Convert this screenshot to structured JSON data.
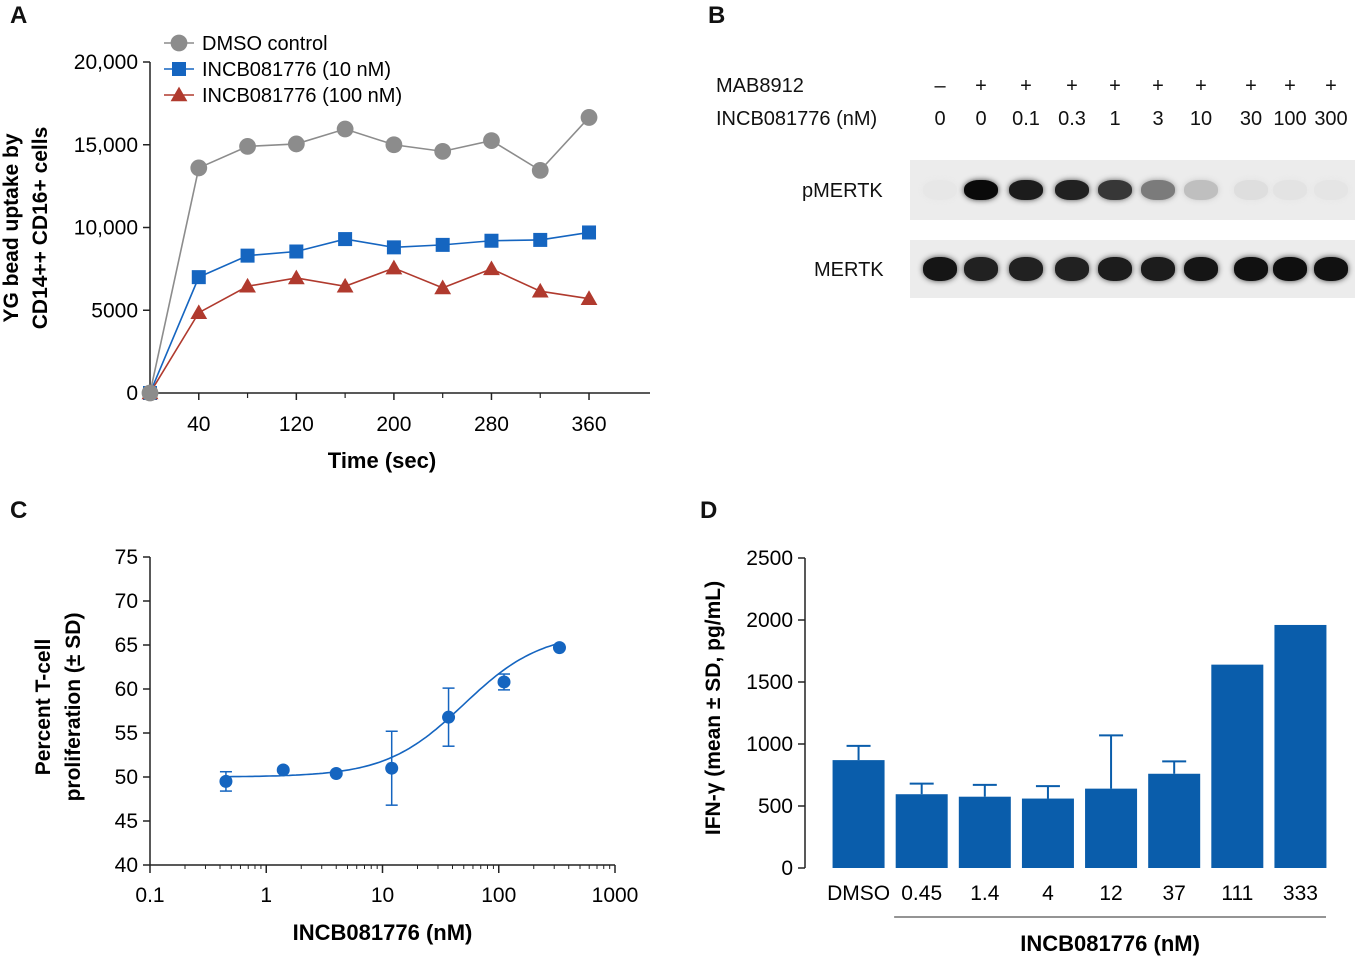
{
  "panels": {
    "A": {
      "letter": "A",
      "chart_data": {
        "type": "line",
        "title": "",
        "xlabel": "Time (sec)",
        "ylabel_line1": "YG bead uptake by",
        "ylabel_line2": "CD14++ CD16+ cells",
        "xlim": [
          0,
          410
        ],
        "ylim": [
          0,
          20000
        ],
        "xticks": [
          40,
          120,
          200,
          280,
          360
        ],
        "yticks": [
          0,
          5000,
          10000,
          15000,
          20000
        ],
        "ytick_labels": [
          "0",
          "5000",
          "10,000",
          "15,000",
          "20,000"
        ],
        "x": [
          0,
          40,
          80,
          120,
          160,
          200,
          240,
          280,
          320,
          360
        ],
        "series": [
          {
            "name": "DMSO control",
            "color": "#8c8c8c",
            "marker": "circle",
            "values": [
              0,
              13600,
              14900,
              15050,
              15950,
              15000,
              14600,
              15250,
              13450,
              16650
            ]
          },
          {
            "name": "INCB081776 (10 nM)",
            "color": "#1565c0",
            "marker": "square",
            "values": [
              0,
              7000,
              8300,
              8550,
              9300,
              8800,
              8950,
              9200,
              9250,
              9700
            ]
          },
          {
            "name": "INCB081776 (100 nM)",
            "color": "#b03a2e",
            "marker": "triangle",
            "values": [
              0,
              4850,
              6450,
              6950,
              6450,
              7550,
              6350,
              7500,
              6150,
              5700
            ]
          }
        ],
        "legend": "top-left"
      }
    },
    "B": {
      "letter": "B",
      "row1_label": "MAB8912",
      "row2_label": "INCB081776 (nM)",
      "mab_signs": [
        "–",
        "+",
        "+",
        "+",
        "+",
        "+",
        "+",
        "+",
        "+",
        "+"
      ],
      "concentrations": [
        "0",
        "0",
        "0.1",
        "0.3",
        "1",
        "3",
        "10",
        "30",
        "100",
        "300"
      ],
      "blot1_label": "pMERTK",
      "blot2_label": "MERTK",
      "pmertk_intensity": [
        0.02,
        1.0,
        0.92,
        0.9,
        0.8,
        0.5,
        0.2,
        0.06,
        0.04,
        0.03
      ],
      "mertk_intensity": [
        0.95,
        0.9,
        0.9,
        0.9,
        0.92,
        0.92,
        0.95,
        0.97,
        0.98,
        0.97
      ]
    },
    "C": {
      "letter": "C",
      "chart_data": {
        "type": "scatter",
        "title": "",
        "xlabel": "INCB081776 (nM)",
        "ylabel_line1": "Percent T-cell",
        "ylabel_line2": "proliferation (± SD)",
        "xscale": "log",
        "xlim": [
          0.1,
          1000
        ],
        "ylim": [
          40,
          75
        ],
        "xticks": [
          0.1,
          1,
          10,
          100,
          1000
        ],
        "xtick_labels": [
          "0.1",
          "1",
          "10",
          "100",
          "1000"
        ],
        "yticks": [
          40,
          45,
          50,
          55,
          60,
          65,
          70,
          75
        ],
        "color": "#1565c0",
        "points": [
          {
            "x": 0.45,
            "y": 49.5,
            "sd": 1.1
          },
          {
            "x": 1.4,
            "y": 50.8,
            "sd": 0
          },
          {
            "x": 4,
            "y": 50.4,
            "sd": 0
          },
          {
            "x": 12,
            "y": 51.0,
            "sd": 4.2
          },
          {
            "x": 37,
            "y": 56.8,
            "sd": 3.3
          },
          {
            "x": 111,
            "y": 60.8,
            "sd": 0.9
          },
          {
            "x": 333,
            "y": 64.7,
            "sd": 0
          }
        ],
        "fit": {
          "bottom": 50,
          "top": 66.5,
          "ec50": 50,
          "hill": 1.3
        }
      }
    },
    "D": {
      "letter": "D",
      "chart_data": {
        "type": "bar",
        "title": "",
        "xlabel": "INCB081776 (nM)",
        "ylabel": "IFN-γ (mean ± SD, pg/mL)",
        "ylim": [
          0,
          2500
        ],
        "yticks": [
          0,
          500,
          1000,
          1500,
          2000,
          2500
        ],
        "categories": [
          "DMSO",
          "0.45",
          "1.4",
          "4",
          "12",
          "37",
          "111",
          "333"
        ],
        "values": [
          870,
          595,
          575,
          560,
          640,
          760,
          1640,
          1960
        ],
        "errors": [
          115,
          85,
          95,
          100,
          430,
          100,
          0,
          0
        ],
        "color": "#0a5dab"
      }
    }
  }
}
